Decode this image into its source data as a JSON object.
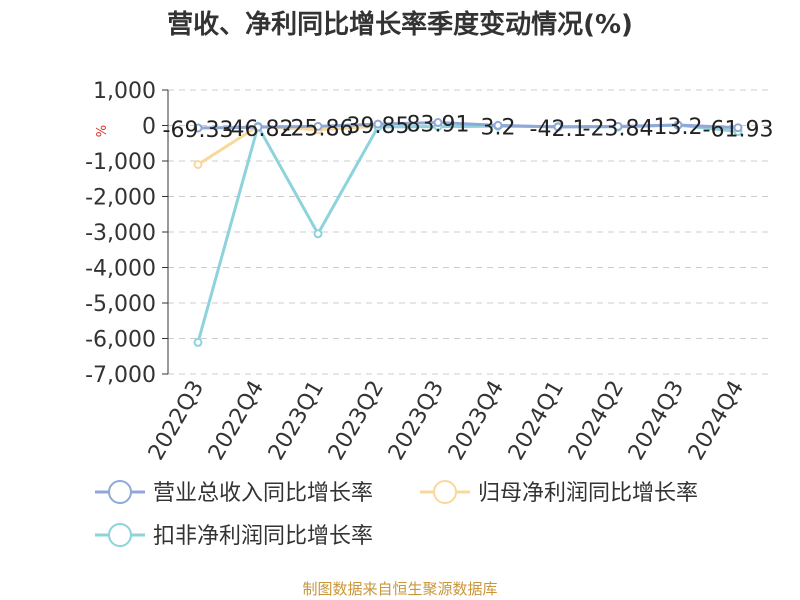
{
  "chart_data": {
    "type": "line",
    "title": "营收、净利同比增长率季度变动情况(%)",
    "unit_label": "%",
    "source": "制图数据来自恒生聚源数据库",
    "categories": [
      "2022Q3",
      "2022Q4",
      "2023Q1",
      "2023Q2",
      "2023Q3",
      "2023Q4",
      "2024Q1",
      "2024Q2",
      "2024Q3",
      "2024Q4"
    ],
    "ylim": [
      -7000,
      1000
    ],
    "yticks": [
      1000,
      0,
      -1000,
      -2000,
      -3000,
      -4000,
      -5000,
      -6000,
      -7000
    ],
    "ytick_labels": [
      "1,000",
      "0",
      "-1,000",
      "-2,000",
      "-3,000",
      "-4,000",
      "-5,000",
      "-6,000",
      "-7,000"
    ],
    "grid": true,
    "legend_position": "bottom",
    "series": [
      {
        "name": "营业总收入同比增长率",
        "color": "#8fa8d8",
        "values": [
          -69.33,
          -46.82,
          -25.86,
          39.85,
          83.91,
          3.2,
          -42.1,
          -23.84,
          13.2,
          -61.93
        ],
        "data_labels": [
          "-69.33",
          "-46.82",
          "-25.86",
          "39.85",
          "83.91",
          "3.2",
          "-42.1",
          "-23.84",
          "13.2",
          "-61.93"
        ]
      },
      {
        "name": "归母净利润同比增长率",
        "color": "#f9d89c",
        "values": [
          -1100,
          -20,
          -120,
          -20,
          null,
          null,
          null,
          null,
          null,
          null
        ]
      },
      {
        "name": "扣非净利润同比增长率",
        "color": "#8dd3dc",
        "values": [
          -6110,
          -20,
          -3050,
          -40,
          -30,
          -20,
          -30,
          -40,
          10,
          -170
        ]
      }
    ]
  }
}
